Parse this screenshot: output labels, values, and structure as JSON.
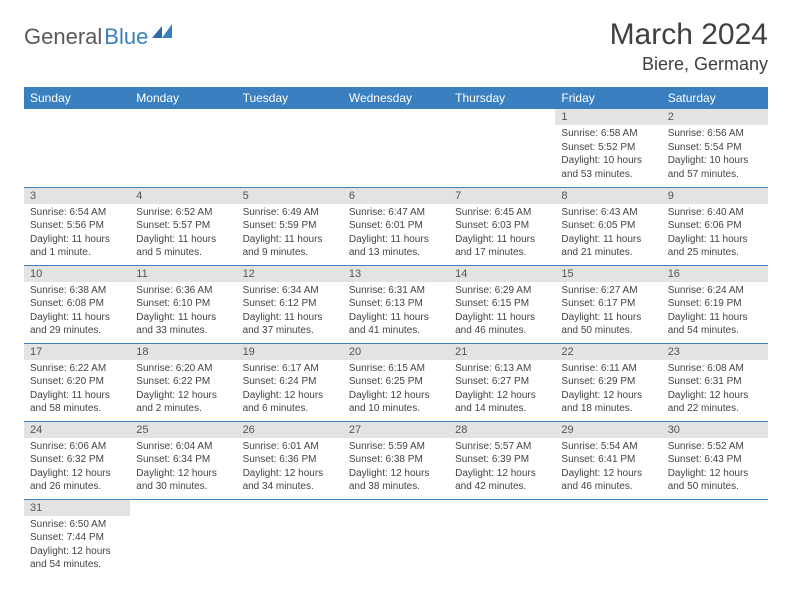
{
  "logo": {
    "general": "General",
    "blue": "Blue"
  },
  "title": "March 2024",
  "location": "Biere, Germany",
  "weekdays": [
    "Sunday",
    "Monday",
    "Tuesday",
    "Wednesday",
    "Thursday",
    "Friday",
    "Saturday"
  ],
  "colors": {
    "header_bg": "#3a7fbf",
    "header_fg": "#ffffff",
    "daynum_bg": "#e3e3e3",
    "border": "#3a7fbf",
    "text": "#333333"
  },
  "weeks": [
    [
      null,
      null,
      null,
      null,
      null,
      {
        "n": "1",
        "sr": "Sunrise: 6:58 AM",
        "ss": "Sunset: 5:52 PM",
        "dl": "Daylight: 10 hours and 53 minutes."
      },
      {
        "n": "2",
        "sr": "Sunrise: 6:56 AM",
        "ss": "Sunset: 5:54 PM",
        "dl": "Daylight: 10 hours and 57 minutes."
      }
    ],
    [
      {
        "n": "3",
        "sr": "Sunrise: 6:54 AM",
        "ss": "Sunset: 5:56 PM",
        "dl": "Daylight: 11 hours and 1 minute."
      },
      {
        "n": "4",
        "sr": "Sunrise: 6:52 AM",
        "ss": "Sunset: 5:57 PM",
        "dl": "Daylight: 11 hours and 5 minutes."
      },
      {
        "n": "5",
        "sr": "Sunrise: 6:49 AM",
        "ss": "Sunset: 5:59 PM",
        "dl": "Daylight: 11 hours and 9 minutes."
      },
      {
        "n": "6",
        "sr": "Sunrise: 6:47 AM",
        "ss": "Sunset: 6:01 PM",
        "dl": "Daylight: 11 hours and 13 minutes."
      },
      {
        "n": "7",
        "sr": "Sunrise: 6:45 AM",
        "ss": "Sunset: 6:03 PM",
        "dl": "Daylight: 11 hours and 17 minutes."
      },
      {
        "n": "8",
        "sr": "Sunrise: 6:43 AM",
        "ss": "Sunset: 6:05 PM",
        "dl": "Daylight: 11 hours and 21 minutes."
      },
      {
        "n": "9",
        "sr": "Sunrise: 6:40 AM",
        "ss": "Sunset: 6:06 PM",
        "dl": "Daylight: 11 hours and 25 minutes."
      }
    ],
    [
      {
        "n": "10",
        "sr": "Sunrise: 6:38 AM",
        "ss": "Sunset: 6:08 PM",
        "dl": "Daylight: 11 hours and 29 minutes."
      },
      {
        "n": "11",
        "sr": "Sunrise: 6:36 AM",
        "ss": "Sunset: 6:10 PM",
        "dl": "Daylight: 11 hours and 33 minutes."
      },
      {
        "n": "12",
        "sr": "Sunrise: 6:34 AM",
        "ss": "Sunset: 6:12 PM",
        "dl": "Daylight: 11 hours and 37 minutes."
      },
      {
        "n": "13",
        "sr": "Sunrise: 6:31 AM",
        "ss": "Sunset: 6:13 PM",
        "dl": "Daylight: 11 hours and 41 minutes."
      },
      {
        "n": "14",
        "sr": "Sunrise: 6:29 AM",
        "ss": "Sunset: 6:15 PM",
        "dl": "Daylight: 11 hours and 46 minutes."
      },
      {
        "n": "15",
        "sr": "Sunrise: 6:27 AM",
        "ss": "Sunset: 6:17 PM",
        "dl": "Daylight: 11 hours and 50 minutes."
      },
      {
        "n": "16",
        "sr": "Sunrise: 6:24 AM",
        "ss": "Sunset: 6:19 PM",
        "dl": "Daylight: 11 hours and 54 minutes."
      }
    ],
    [
      {
        "n": "17",
        "sr": "Sunrise: 6:22 AM",
        "ss": "Sunset: 6:20 PM",
        "dl": "Daylight: 11 hours and 58 minutes."
      },
      {
        "n": "18",
        "sr": "Sunrise: 6:20 AM",
        "ss": "Sunset: 6:22 PM",
        "dl": "Daylight: 12 hours and 2 minutes."
      },
      {
        "n": "19",
        "sr": "Sunrise: 6:17 AM",
        "ss": "Sunset: 6:24 PM",
        "dl": "Daylight: 12 hours and 6 minutes."
      },
      {
        "n": "20",
        "sr": "Sunrise: 6:15 AM",
        "ss": "Sunset: 6:25 PM",
        "dl": "Daylight: 12 hours and 10 minutes."
      },
      {
        "n": "21",
        "sr": "Sunrise: 6:13 AM",
        "ss": "Sunset: 6:27 PM",
        "dl": "Daylight: 12 hours and 14 minutes."
      },
      {
        "n": "22",
        "sr": "Sunrise: 6:11 AM",
        "ss": "Sunset: 6:29 PM",
        "dl": "Daylight: 12 hours and 18 minutes."
      },
      {
        "n": "23",
        "sr": "Sunrise: 6:08 AM",
        "ss": "Sunset: 6:31 PM",
        "dl": "Daylight: 12 hours and 22 minutes."
      }
    ],
    [
      {
        "n": "24",
        "sr": "Sunrise: 6:06 AM",
        "ss": "Sunset: 6:32 PM",
        "dl": "Daylight: 12 hours and 26 minutes."
      },
      {
        "n": "25",
        "sr": "Sunrise: 6:04 AM",
        "ss": "Sunset: 6:34 PM",
        "dl": "Daylight: 12 hours and 30 minutes."
      },
      {
        "n": "26",
        "sr": "Sunrise: 6:01 AM",
        "ss": "Sunset: 6:36 PM",
        "dl": "Daylight: 12 hours and 34 minutes."
      },
      {
        "n": "27",
        "sr": "Sunrise: 5:59 AM",
        "ss": "Sunset: 6:38 PM",
        "dl": "Daylight: 12 hours and 38 minutes."
      },
      {
        "n": "28",
        "sr": "Sunrise: 5:57 AM",
        "ss": "Sunset: 6:39 PM",
        "dl": "Daylight: 12 hours and 42 minutes."
      },
      {
        "n": "29",
        "sr": "Sunrise: 5:54 AM",
        "ss": "Sunset: 6:41 PM",
        "dl": "Daylight: 12 hours and 46 minutes."
      },
      {
        "n": "30",
        "sr": "Sunrise: 5:52 AM",
        "ss": "Sunset: 6:43 PM",
        "dl": "Daylight: 12 hours and 50 minutes."
      }
    ],
    [
      {
        "n": "31",
        "sr": "Sunrise: 6:50 AM",
        "ss": "Sunset: 7:44 PM",
        "dl": "Daylight: 12 hours and 54 minutes."
      },
      null,
      null,
      null,
      null,
      null,
      null
    ]
  ]
}
